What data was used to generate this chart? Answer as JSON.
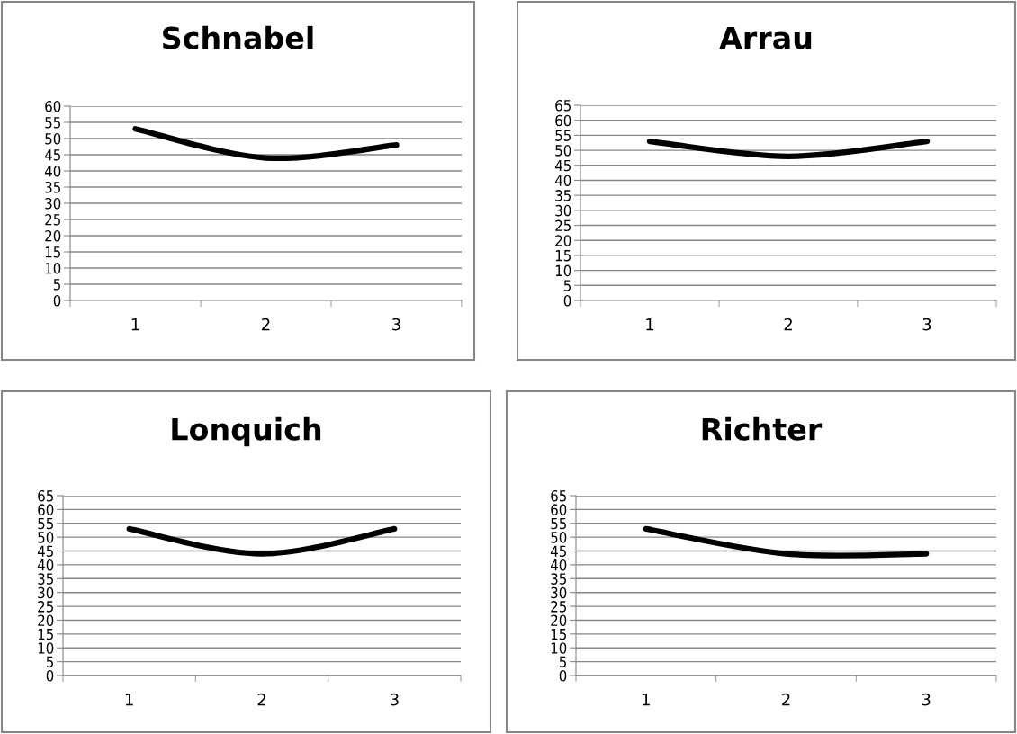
{
  "chart_data": [
    {
      "type": "line",
      "title": "Schnabel",
      "categories": [
        "1",
        "2",
        "3"
      ],
      "series": [
        {
          "color": "#000000",
          "values": [
            53,
            44,
            48
          ]
        }
      ],
      "ylim": [
        0,
        60
      ],
      "yticks": [
        0,
        5,
        10,
        15,
        20,
        25,
        30,
        35,
        40,
        45,
        50,
        55,
        60
      ],
      "grid": "y"
    },
    {
      "type": "line",
      "title": "Arrau",
      "categories": [
        "1",
        "2",
        "3"
      ],
      "series": [
        {
          "color": "#000000",
          "values": [
            53,
            48,
            53
          ]
        }
      ],
      "ylim": [
        0,
        65
      ],
      "yticks": [
        0,
        5,
        10,
        15,
        20,
        25,
        30,
        35,
        40,
        45,
        50,
        55,
        60,
        65
      ],
      "grid": "y"
    },
    {
      "type": "line",
      "title": "Lonquich",
      "categories": [
        "1",
        "2",
        "3"
      ],
      "series": [
        {
          "color": "#000000",
          "values": [
            53,
            44,
            53
          ]
        }
      ],
      "ylim": [
        0,
        65
      ],
      "yticks": [
        0,
        5,
        10,
        15,
        20,
        25,
        30,
        35,
        40,
        45,
        50,
        55,
        60,
        65
      ],
      "grid": "y"
    },
    {
      "type": "line",
      "title": "Richter",
      "categories": [
        "1",
        "2",
        "3"
      ],
      "series": [
        {
          "color": "#000000",
          "values": [
            53,
            44,
            44
          ]
        }
      ],
      "ylim": [
        0,
        65
      ],
      "yticks": [
        0,
        5,
        10,
        15,
        20,
        25,
        30,
        35,
        40,
        45,
        50,
        55,
        60,
        65
      ],
      "grid": "y"
    }
  ]
}
